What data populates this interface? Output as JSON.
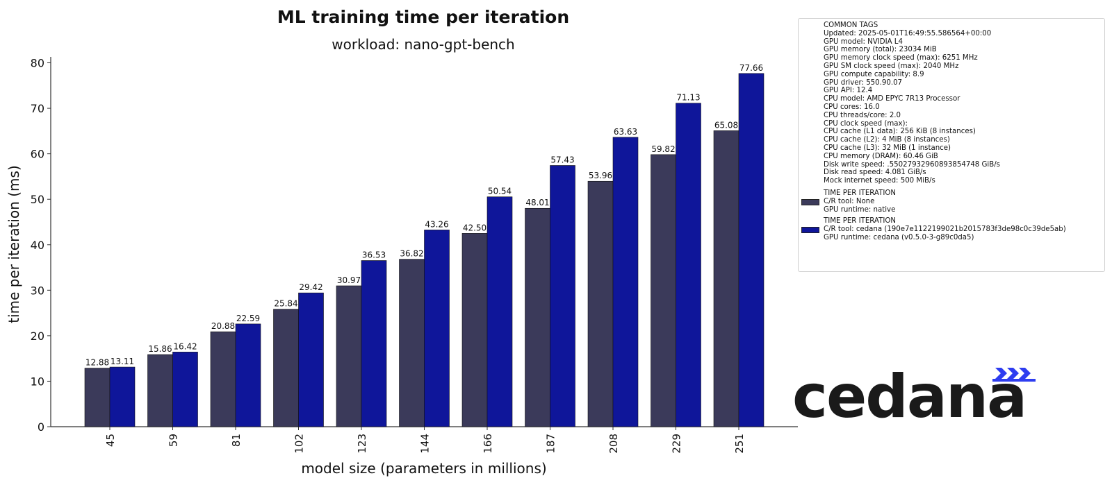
{
  "chart_data": {
    "type": "bar",
    "title": "ML training time per iteration",
    "subtitle": "workload: nano-gpt-bench",
    "xlabel": "model size (parameters in millions)",
    "ylabel": "time per iteration (ms)",
    "ylim": [
      0,
      80
    ],
    "yticks": [
      0,
      10,
      20,
      30,
      40,
      50,
      60,
      70,
      80
    ],
    "categories": [
      "45",
      "59",
      "81",
      "102",
      "123",
      "144",
      "166",
      "187",
      "208",
      "229",
      "251"
    ],
    "series": [
      {
        "values": [
          12.88,
          15.86,
          20.88,
          25.84,
          30.97,
          36.82,
          42.5,
          48.01,
          53.96,
          59.82,
          65.08
        ],
        "labels": [
          "12.88",
          "15.86",
          "20.88",
          "25.84",
          "30.97",
          "36.82",
          "42.50",
          "48.01",
          "53.96",
          "59.82",
          "65.08"
        ],
        "color": "#3b3a5a"
      },
      {
        "values": [
          13.11,
          16.42,
          22.59,
          29.42,
          36.53,
          43.26,
          50.54,
          57.43,
          63.63,
          71.13,
          77.66
        ],
        "labels": [
          "13.11",
          "16.42",
          "22.59",
          "29.42",
          "36.53",
          "43.26",
          "50.54",
          "57.43",
          "63.63",
          "71.13",
          "77.66"
        ],
        "color": "#0f169a"
      }
    ],
    "grid": false,
    "legend_placement": "top-right outside"
  },
  "legend": {
    "common_tags": [
      "COMMON TAGS",
      "Updated: 2025-05-01T16:49:55.586564+00:00",
      "GPU model: NVIDIA L4",
      "GPU memory (total): 23034 MiB",
      "GPU memory clock speed (max): 6251 MHz",
      "GPU SM clock speed (max): 2040 MHz",
      "GPU compute capability: 8.9",
      "GPU driver: 550.90.07",
      "GPU API: 12.4",
      "CPU model: AMD EPYC 7R13 Processor",
      "CPU cores: 16.0",
      "CPU threads/core: 2.0",
      "CPU clock speed (max):",
      "CPU cache (L1 data): 256 KiB (8 instances)",
      "CPU cache (L2): 4 MiB (8 instances)",
      "CPU cache (L3): 32 MiB (1 instance)",
      "CPU memory (DRAM): 60.46 GiB",
      "Disk write speed: .55027932960893854748 GiB/s",
      "Disk read speed: 4.081 GiB/s",
      "Mock internet speed: 500 MiB/s"
    ],
    "entries": [
      {
        "lines": [
          "TIME PER ITERATION",
          "C/R tool: None",
          "GPU runtime: native"
        ],
        "color": "#3b3a5a"
      },
      {
        "lines": [
          "TIME PER ITERATION",
          "C/R tool: cedana (190e7e1122199021b2015783f3de98c0c39de5ab)",
          "GPU runtime: cedana (v0.5.0-3-g89c0da5)"
        ],
        "color": "#0f169a"
      }
    ]
  },
  "logo": {
    "text": "cedana",
    "accent_color": "#2e3df0"
  }
}
